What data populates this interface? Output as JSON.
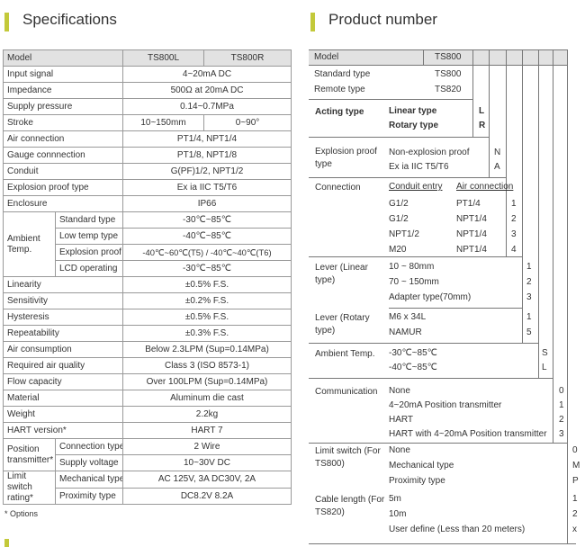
{
  "specifications": {
    "title": "Specifications",
    "header": [
      "Model",
      "TS800L",
      "TS800R"
    ],
    "rows": [
      [
        "Input signal",
        "4~20mA DC"
      ],
      [
        "Impedance",
        "500Ω at 20mA DC"
      ],
      [
        "Supply pressure",
        "0.14~0.7MPa"
      ],
      [
        "Stroke",
        "10~150mm",
        "0~90°"
      ],
      [
        "Air connection",
        "PT1/4, NPT1/4"
      ],
      [
        "Gauge connnection",
        "PT1/8, NPT1/8"
      ],
      [
        "Conduit",
        "G(PF)1/2, NPT1/2"
      ],
      [
        "Explosion proof type",
        "Ex ia IIC T5/T6"
      ],
      [
        "Enclosure",
        "IP66"
      ],
      {
        "label": "Ambient Temp.",
        "items": [
          [
            "Standard type",
            "-30℃~85℃"
          ],
          [
            "Low temp type",
            "-40℃~85℃"
          ],
          [
            "Explosion proof",
            "-40℃~60℃(T5) / -40℃~40℃(T6)"
          ],
          [
            "LCD operating",
            "-30℃~85℃"
          ]
        ]
      },
      [
        "Linearity",
        "±0.5% F.S."
      ],
      [
        "Sensitivity",
        "±0.2% F.S."
      ],
      [
        "Hysteresis",
        "±0.5% F.S."
      ],
      [
        "Repeatability",
        "±0.3% F.S."
      ],
      [
        "Air consumption",
        "Below 2.3LPM (Sup=0.14MPa)"
      ],
      [
        "Required air quality",
        "Class 3 (ISO 8573-1)"
      ],
      [
        "Flow capacity",
        "Over 100LPM (Sup=0.14MPa)"
      ],
      [
        "Material",
        "Aluminum die cast"
      ],
      [
        "Weight",
        "2.2kg"
      ],
      [
        "HART version*",
        "HART 7"
      ],
      {
        "label": "Position transmitter*",
        "items": [
          [
            "Connection type",
            "2 Wire"
          ],
          [
            "Supply voltage",
            "10~30V DC"
          ]
        ]
      },
      {
        "label": "Limit switch rating*",
        "items": [
          [
            "Mechanical type",
            "AC 125V, 3A DC30V, 2A"
          ],
          [
            "Proximity type",
            "DC8.2V 8.2A"
          ]
        ]
      }
    ],
    "note": "* Options"
  },
  "product_number": {
    "title": "Product number",
    "model": {
      "label": "Model",
      "value": "TS800"
    },
    "types": [
      [
        "Standard type",
        "TS800"
      ],
      [
        "Remote type",
        "TS820"
      ]
    ],
    "acting": {
      "label": "Acting type",
      "options": [
        [
          "Linear type",
          "L"
        ],
        [
          "Rotary type",
          "R"
        ]
      ]
    },
    "explosion": {
      "label": "Explosion proof type",
      "options": [
        [
          "Non-explosion proof",
          "N"
        ],
        [
          "Ex ia IIC T5/T6",
          "A"
        ]
      ]
    },
    "connection": {
      "label": "Connection",
      "headers": [
        "Conduit entry",
        "Air connection"
      ],
      "options": [
        [
          "G1/2",
          "PT1/4",
          "1"
        ],
        [
          "G1/2",
          "NPT1/4",
          "2"
        ],
        [
          "NPT1/2",
          "NPT1/4",
          "3"
        ],
        [
          "M20",
          "NPT1/4",
          "4"
        ]
      ]
    },
    "lever_linear": {
      "label": "Lever (Linear type)",
      "options": [
        [
          "10 ~ 80mm",
          "1"
        ],
        [
          "70 ~ 150mm",
          "2"
        ],
        [
          "Adapter type(70mm)",
          "3"
        ]
      ]
    },
    "lever_rotary": {
      "label": "Lever (Rotary type)",
      "options": [
        [
          "M6 x 34L",
          "1"
        ],
        [
          "NAMUR",
          "5"
        ]
      ]
    },
    "ambient": {
      "label": "Ambient Temp.",
      "options": [
        [
          "-30℃~85℃",
          "S"
        ],
        [
          "-40℃~85℃",
          "L"
        ]
      ]
    },
    "communication": {
      "label": "Communication",
      "options": [
        [
          "None",
          "0"
        ],
        [
          "4~20mA Position transmitter",
          "1"
        ],
        [
          "HART",
          "2"
        ],
        [
          "HART with 4~20mA Position transmitter",
          "3"
        ]
      ]
    },
    "limit_switch": {
      "label": "Limit switch (For TS800)",
      "options": [
        [
          "None",
          "0"
        ],
        [
          "Mechanical type",
          "M"
        ],
        [
          "Proximity type",
          "P"
        ]
      ]
    },
    "cable": {
      "label": "Cable length (For TS820)",
      "options": [
        [
          "5m",
          "1"
        ],
        [
          "10m",
          "2"
        ],
        [
          "User define (Less than 20 meters)",
          "x"
        ]
      ]
    }
  }
}
